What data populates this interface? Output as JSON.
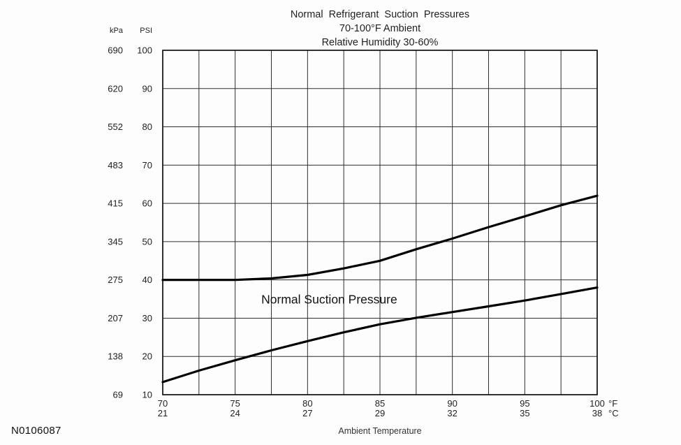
{
  "figure_id": "N0106087",
  "chart_data": {
    "type": "line",
    "title_lines": [
      "Normal  Refrigerant  Suction  Pressures",
      "70-100°F Ambient",
      "Relative Humidity 30-60%"
    ],
    "xlabel": "Ambient Temperature",
    "x_axis": {
      "min": 70,
      "max": 100,
      "grid_step": 2.5,
      "ticks_f": [
        70,
        75,
        80,
        85,
        90,
        95,
        100
      ],
      "ticks_c": [
        21,
        24,
        27,
        29,
        32,
        35,
        38
      ],
      "unit_f": "°F",
      "unit_c": "°C"
    },
    "y_axis": {
      "min": 10,
      "max": 100,
      "grid_step": 10,
      "unit_left": "kPa",
      "unit_right": "PSI",
      "ticks_psi": [
        10,
        20,
        30,
        40,
        50,
        60,
        70,
        80,
        90,
        100
      ],
      "ticks_kpa": [
        69,
        138,
        207,
        275,
        345,
        415,
        483,
        552,
        620,
        690
      ]
    },
    "annotation": {
      "text": "Normal Suction Pressure",
      "x_f": 81.5,
      "y_psi": 33.8
    },
    "series": [
      {
        "name": "upper-limit",
        "points": [
          [
            70,
            40
          ],
          [
            72.5,
            40
          ],
          [
            75,
            40
          ],
          [
            77.5,
            40.4
          ],
          [
            80,
            41.3
          ],
          [
            82.5,
            43
          ],
          [
            85,
            45
          ],
          [
            87.5,
            48
          ],
          [
            90,
            50.8
          ],
          [
            92.5,
            53.8
          ],
          [
            95,
            56.6
          ],
          [
            97.5,
            59.5
          ],
          [
            100,
            62
          ]
        ]
      },
      {
        "name": "lower-limit",
        "points": [
          [
            70,
            13.3
          ],
          [
            72.5,
            16.3
          ],
          [
            75,
            19
          ],
          [
            77.5,
            21.6
          ],
          [
            80,
            24
          ],
          [
            82.5,
            26.3
          ],
          [
            85,
            28.4
          ],
          [
            87.5,
            30.1
          ],
          [
            90,
            31.6
          ],
          [
            92.5,
            33.1
          ],
          [
            95,
            34.6
          ],
          [
            97.5,
            36.3
          ],
          [
            100,
            38
          ]
        ]
      }
    ],
    "legend": "none",
    "grid": "on"
  }
}
